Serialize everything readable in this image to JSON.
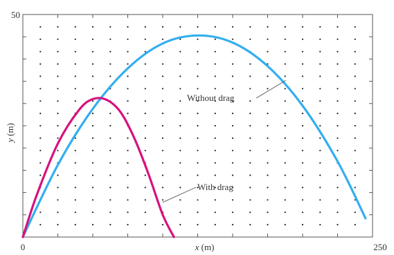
{
  "chart_data": {
    "type": "line",
    "title": "",
    "xlabel": {
      "var": "x",
      "unit": " (m)"
    },
    "ylabel": {
      "var": "y",
      "unit": " (m)"
    },
    "xlim": [
      0,
      250
    ],
    "ylim": [
      0,
      50
    ],
    "x_tick_labels": [
      {
        "value": 0,
        "label": "0"
      },
      {
        "value": 250,
        "label": "250"
      }
    ],
    "y_tick_labels": [
      {
        "value": 50,
        "label": "50"
      }
    ],
    "grid": "dotted",
    "colors": {
      "without_drag": "#33aef0",
      "with_drag": "#d6127e",
      "frame": "#555555",
      "grid_dot": "#222222",
      "leader": "#555555"
    },
    "series": [
      {
        "id": "without_drag",
        "x": [
          0,
          25,
          50,
          75,
          100,
          125,
          150,
          175,
          200,
          225,
          245
        ],
        "y": [
          0,
          16.2,
          28.8,
          37.9,
          43.5,
          45.3,
          43.7,
          38.4,
          29.5,
          17.0,
          4.2
        ]
      },
      {
        "id": "with_drag",
        "x": [
          0,
          10,
          25,
          40,
          50,
          60,
          70,
          80,
          90,
          100,
          108
        ],
        "y": [
          0,
          9.5,
          21.0,
          28.5,
          31.0,
          30.8,
          28.0,
          22.0,
          14.0,
          5.0,
          0
        ]
      }
    ],
    "annotations": [
      {
        "id": "without_drag_label",
        "text": "Without drag",
        "series": "without_drag",
        "anchor_x": 188,
        "anchor_y": 35.2
      },
      {
        "id": "with_drag_label",
        "text": "With drag",
        "series": "with_drag",
        "anchor_x": 100,
        "anchor_y": 7.8
      }
    ]
  }
}
